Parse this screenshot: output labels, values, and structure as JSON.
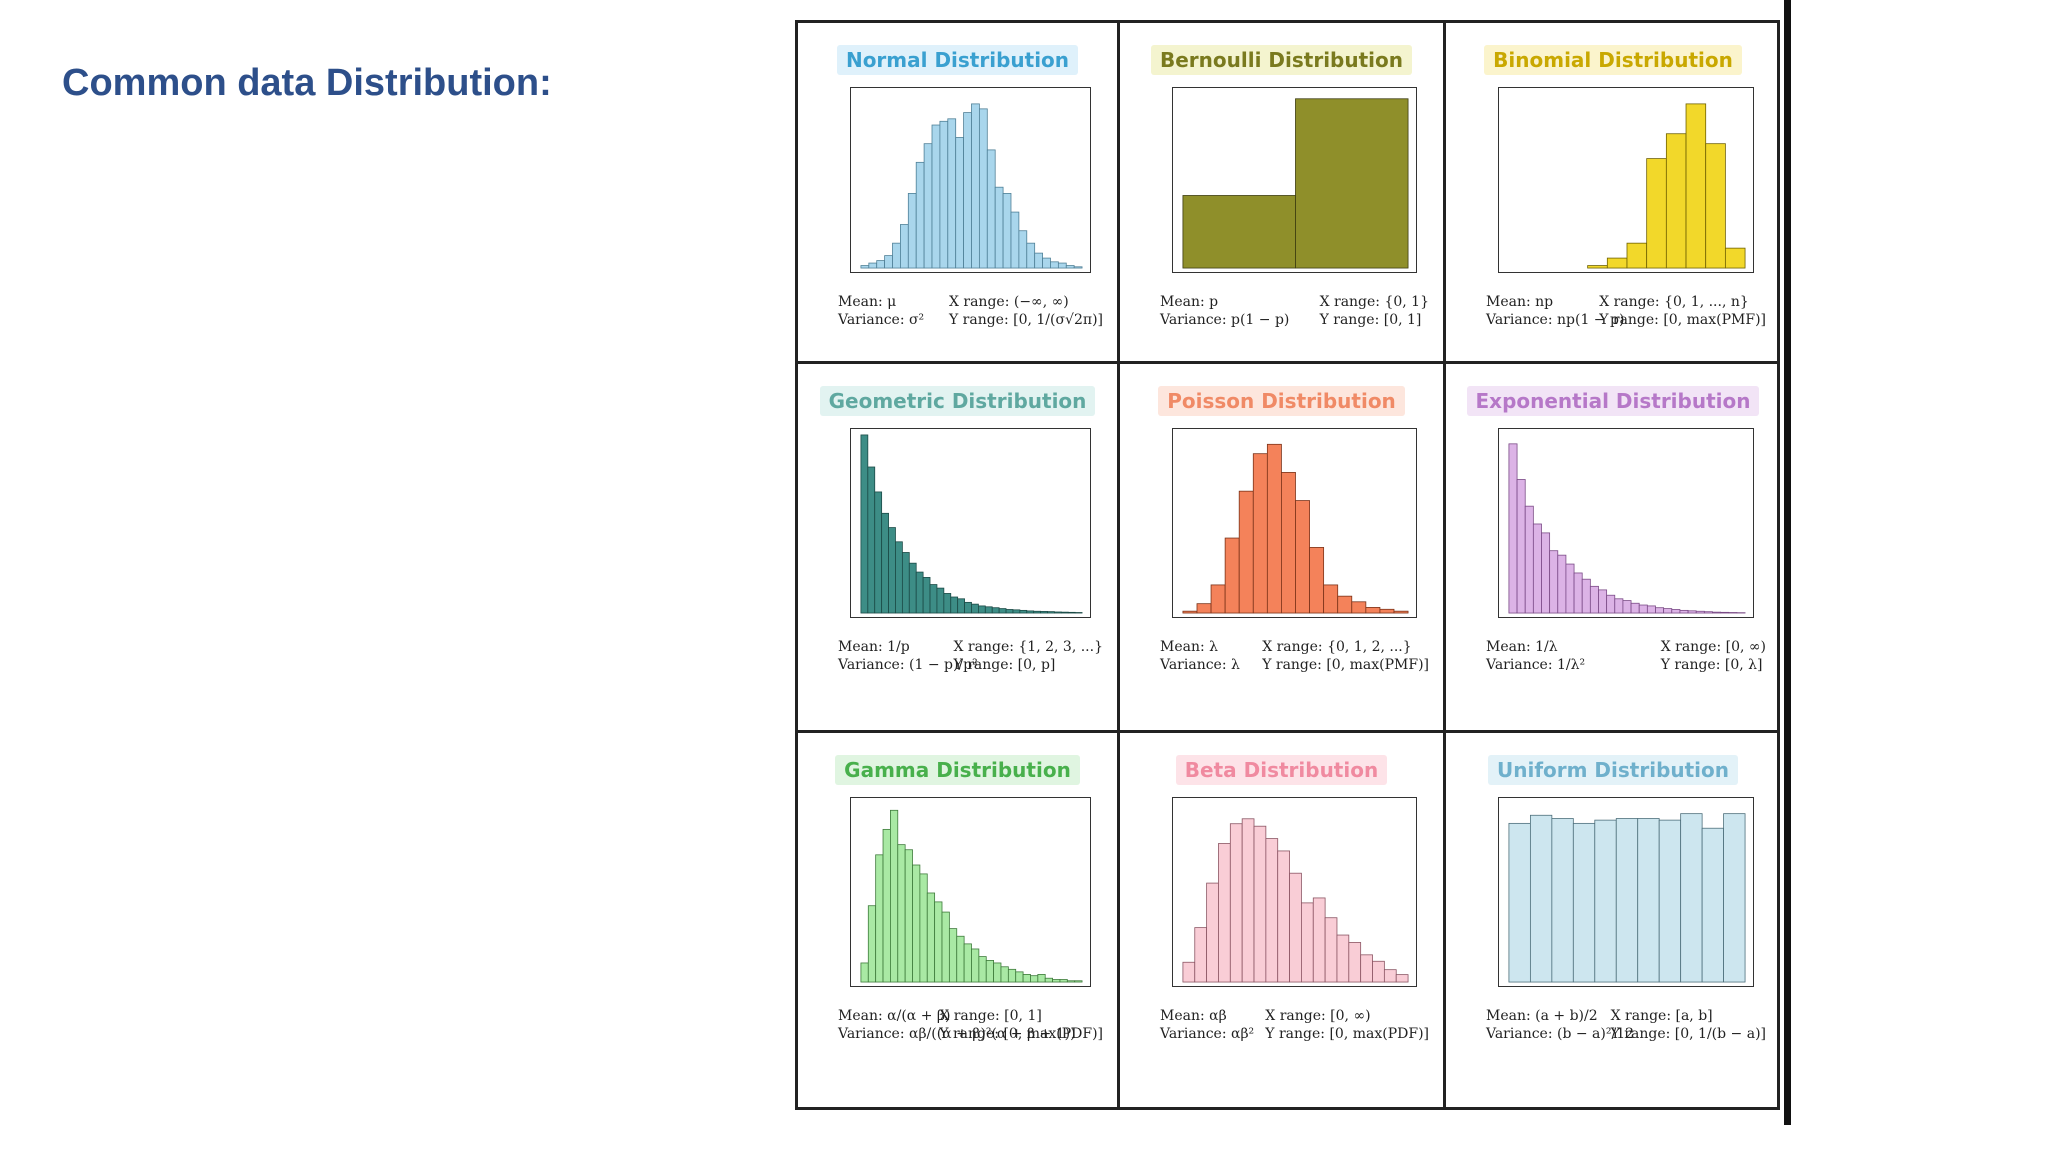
{
  "slide": {
    "title": "Common data Distribution:"
  },
  "cells": [
    {
      "title": "Normal Distribution",
      "title_color": "#3aa0d0",
      "title_bg": "#dff1fb",
      "bar_color": "#a9d6ec",
      "bar_stroke": "#4e7f96",
      "mean": "Mean: μ",
      "variance": "Variance: σ²",
      "xrange": "X range: (−∞, ∞)",
      "yrange": "Y range: [0, 1/(σ√2π)]"
    },
    {
      "title": "Bernoulli Distribution",
      "title_color": "#7a7a1e",
      "title_bg": "#f4f4cf",
      "bar_color": "#8f8f2a",
      "bar_stroke": "#3c3c10",
      "mean": "Mean: p",
      "variance": "Variance: p(1 − p)",
      "xrange": "X range: {0, 1}",
      "yrange": "Y range: [0, 1]"
    },
    {
      "title": "Binomial Distribution",
      "title_color": "#c9a800",
      "title_bg": "#fbf4cc",
      "bar_color": "#f2d82a",
      "bar_stroke": "#6e6000",
      "mean": "Mean: np",
      "variance": "Variance: np(1 − p)",
      "xrange": "X range: {0, 1, ..., n}",
      "yrange": "Y range: [0, max(PMF)]"
    },
    {
      "title": "Geometric Distribution",
      "title_color": "#5fa8a0",
      "title_bg": "#e2f3f1",
      "bar_color": "#3d8d86",
      "bar_stroke": "#1b4a46",
      "mean": "Mean: 1/p",
      "variance": "Variance: (1 − p)/p²",
      "xrange": "X range: {1, 2, 3, ...}",
      "yrange": "Y range: [0, p]"
    },
    {
      "title": "Poisson Distribution",
      "title_color": "#f08a66",
      "title_bg": "#fde6dd",
      "bar_color": "#f4825a",
      "bar_stroke": "#7a3218",
      "mean": "Mean: λ",
      "variance": "Variance: λ",
      "xrange": "X range: {0, 1, 2, ...}",
      "yrange": "Y range: [0, max(PMF)]"
    },
    {
      "title": "Exponential Distribution",
      "title_color": "#b678c8",
      "title_bg": "#f2e4f6",
      "bar_color": "#dcb3e6",
      "bar_stroke": "#7a4a86",
      "mean": "Mean: 1/λ",
      "variance": "Variance: 1/λ²",
      "xrange": "X range: [0, ∞)",
      "yrange": "Y range: [0, λ]"
    },
    {
      "title": "Gamma Distribution",
      "title_color": "#48b04c",
      "title_bg": "#e0f5e1",
      "bar_color": "#a9e9a4",
      "bar_stroke": "#3d7a3a",
      "mean": "Mean: α/(α + β)",
      "variance": "Variance: αβ/((α + β)²(α + β + 1))",
      "xrange": "X range: [0, 1]",
      "yrange": "Y range: [0, max(PDF)]"
    },
    {
      "title": "Beta Distribution",
      "title_color": "#f08aa0",
      "title_bg": "#fde3e8",
      "bar_color": "#f9cdd6",
      "bar_stroke": "#8a5462",
      "mean": "Mean: αβ",
      "variance": "Variance: αβ²",
      "xrange": "X range: [0, ∞)",
      "yrange": "Y range: [0, max(PDF)]"
    },
    {
      "title": "Uniform Distribution",
      "title_color": "#6fb0cc",
      "title_bg": "#e3f2f8",
      "bar_color": "#cde6ef",
      "bar_stroke": "#4d6e7a",
      "mean": "Mean: (a + b)/2",
      "variance": "Variance: (b − a)²/12",
      "xrange": "X range: [a, b]",
      "yrange": "Y range: [0, 1/(b − a)]"
    }
  ],
  "chart_data": [
    {
      "type": "bar",
      "title": "Normal Distribution",
      "values": [
        0.002,
        0.004,
        0.006,
        0.01,
        0.02,
        0.035,
        0.06,
        0.085,
        0.1,
        0.115,
        0.118,
        0.12,
        0.105,
        0.125,
        0.132,
        0.128,
        0.095,
        0.065,
        0.06,
        0.045,
        0.03,
        0.02,
        0.012,
        0.008,
        0.005,
        0.004,
        0.002,
        0.001
      ],
      "ylim": [
        0,
        0.14
      ]
    },
    {
      "type": "bar",
      "title": "Bernoulli Distribution",
      "categories": [
        "0",
        "1"
      ],
      "values": [
        0.3,
        0.7
      ],
      "ylim": [
        0,
        0.72
      ]
    },
    {
      "type": "bar",
      "title": "Binomial Distribution",
      "values": [
        0,
        0,
        0,
        0,
        0.005,
        0.02,
        0.05,
        0.22,
        0.27,
        0.33,
        0.25,
        0.04
      ],
      "ylim": [
        0,
        0.35
      ]
    },
    {
      "type": "bar",
      "title": "Geometric Distribution",
      "values": [
        0.1,
        0.082,
        0.068,
        0.056,
        0.048,
        0.04,
        0.034,
        0.028,
        0.023,
        0.02,
        0.016,
        0.014,
        0.011,
        0.009,
        0.008,
        0.006,
        0.005,
        0.004,
        0.0035,
        0.003,
        0.0025,
        0.002,
        0.0018,
        0.0015,
        0.0012,
        0.001,
        0.0009,
        0.0008,
        0.0006,
        0.0005,
        0.0004,
        0.0003
      ],
      "ylim": [
        0,
        0.1
      ]
    },
    {
      "type": "bar",
      "title": "Poisson Distribution",
      "values": [
        0.002,
        0.01,
        0.03,
        0.08,
        0.13,
        0.17,
        0.18,
        0.15,
        0.12,
        0.07,
        0.03,
        0.018,
        0.012,
        0.006,
        0.004,
        0.002
      ],
      "ylim": [
        0,
        0.19
      ]
    },
    {
      "type": "bar",
      "title": "Exponential Distribution",
      "values": [
        0.19,
        0.15,
        0.12,
        0.1,
        0.09,
        0.07,
        0.065,
        0.055,
        0.045,
        0.038,
        0.03,
        0.026,
        0.02,
        0.016,
        0.014,
        0.011,
        0.009,
        0.008,
        0.006,
        0.005,
        0.004,
        0.003,
        0.0025,
        0.002,
        0.0015,
        0.001,
        0.0008,
        0.0006,
        0.0004
      ],
      "ylim": [
        0,
        0.2
      ]
    },
    {
      "type": "bar",
      "title": "Gamma Distribution",
      "values": [
        0.015,
        0.06,
        0.1,
        0.12,
        0.135,
        0.108,
        0.104,
        0.092,
        0.085,
        0.07,
        0.063,
        0.055,
        0.042,
        0.036,
        0.03,
        0.026,
        0.02,
        0.017,
        0.015,
        0.012,
        0.01,
        0.008,
        0.006,
        0.005,
        0.006,
        0.003,
        0.002,
        0.002,
        0.001,
        0.001
      ],
      "ylim": [
        0,
        0.14
      ]
    },
    {
      "type": "bar",
      "title": "Beta Distribution",
      "values": [
        0.4,
        1.1,
        2.0,
        2.8,
        3.2,
        3.3,
        3.15,
        2.9,
        2.65,
        2.2,
        1.6,
        1.7,
        1.3,
        0.95,
        0.8,
        0.55,
        0.42,
        0.25,
        0.15
      ],
      "ylim": [
        0,
        3.6
      ]
    },
    {
      "type": "bar",
      "title": "Uniform Distribution",
      "values": [
        0.098,
        0.103,
        0.101,
        0.098,
        0.1,
        0.101,
        0.101,
        0.1,
        0.104,
        0.095,
        0.104
      ],
      "ylim": [
        0,
        0.11
      ]
    }
  ]
}
